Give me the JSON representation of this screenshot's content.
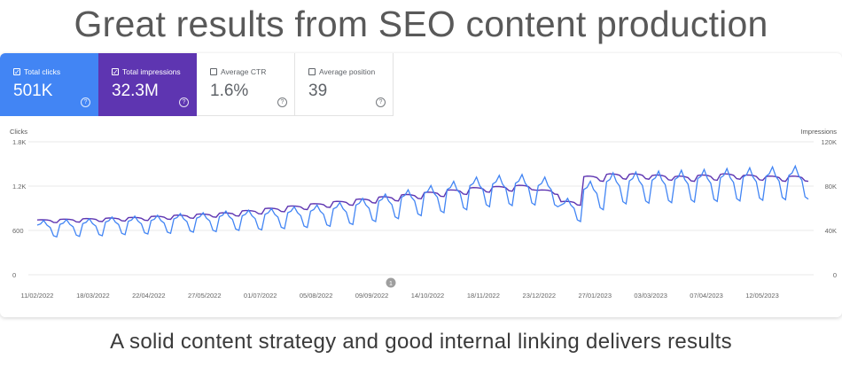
{
  "headline": "Great results from SEO content production",
  "caption": "A solid content strategy and good internal linking delivers results",
  "metrics": [
    {
      "label": "Total clicks",
      "value": "501K",
      "selected": true
    },
    {
      "label": "Total impressions",
      "value": "32.3M",
      "selected": true
    },
    {
      "label": "Average CTR",
      "value": "1.6%",
      "selected": false
    },
    {
      "label": "Average position",
      "value": "39",
      "selected": false
    }
  ],
  "colors": {
    "clicks": "#4285f4",
    "clicks_card": "#4285f4",
    "impressions": "#5e35b1",
    "impressions_card": "#5e35b1",
    "grid": "#e8e8e8",
    "axis_text": "#666666"
  },
  "annotation_marker": "1",
  "chart_data": {
    "type": "line",
    "y_left": {
      "label": "Clicks",
      "ticks": [
        "1.8K",
        "1.2K",
        "600",
        "0"
      ],
      "range": [
        0,
        1800
      ]
    },
    "y_right": {
      "label": "Impressions",
      "ticks": [
        "120K",
        "80K",
        "40K",
        "0"
      ],
      "range": [
        0,
        120000
      ]
    },
    "x_ticks": [
      "11/02/2022",
      "18/03/2022",
      "22/04/2022",
      "27/05/2022",
      "01/07/2022",
      "05/08/2022",
      "09/09/2022",
      "14/10/2022",
      "18/11/2022",
      "23/12/2022",
      "27/01/2023",
      "03/03/2023",
      "07/04/2023",
      "12/05/2023"
    ],
    "grid": true,
    "series": [
      {
        "name": "Clicks",
        "axis": "left",
        "weekly_baseline": [
          640,
          650,
          660,
          680,
          690,
          700,
          720,
          730,
          750,
          760,
          780,
          800,
          820,
          850,
          900,
          950,
          1000,
          1050,
          1100,
          1150,
          1170,
          1180,
          1150,
          900,
          1100,
          1200,
          1210,
          1220,
          1230,
          1240,
          1250,
          1260,
          1270,
          1280
        ],
        "weekday_peak": 1050,
        "weekend_dip": 500
      },
      {
        "name": "Impressions",
        "axis": "right",
        "weekly_average": [
          48000,
          48500,
          49000,
          49500,
          50000,
          51000,
          52000,
          53000,
          54000,
          56000,
          58000,
          60000,
          62000,
          64000,
          66000,
          68000,
          70000,
          72000,
          74000,
          76000,
          77000,
          78000,
          74000,
          64000,
          86000,
          88000,
          88000,
          87000,
          86000,
          87000,
          88000,
          87000,
          86000,
          86000
        ]
      }
    ]
  }
}
